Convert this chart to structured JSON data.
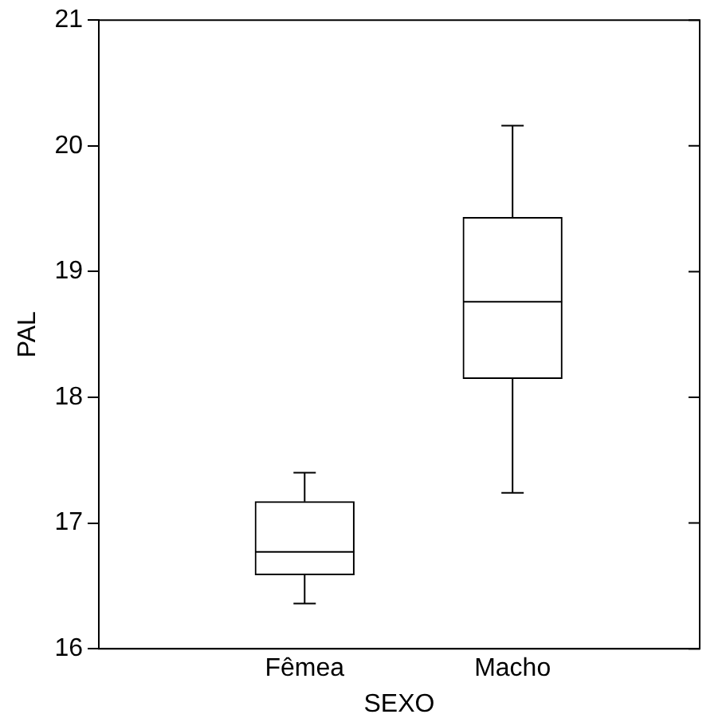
{
  "chart_data": {
    "type": "box",
    "xlabel": "SEXO",
    "ylabel": "PAL",
    "categories": [
      "Fêmea",
      "Macho"
    ],
    "boxes": [
      {
        "low": 16.36,
        "q1": 16.59,
        "median": 16.77,
        "q3": 17.17,
        "high": 17.4
      },
      {
        "low": 17.24,
        "q1": 18.15,
        "median": 18.76,
        "q3": 19.43,
        "high": 20.16
      }
    ],
    "color": "#000000",
    "ylim": [
      16,
      21
    ],
    "yticks": [
      16,
      17,
      18,
      19,
      20,
      21
    ],
    "grid": false
  }
}
